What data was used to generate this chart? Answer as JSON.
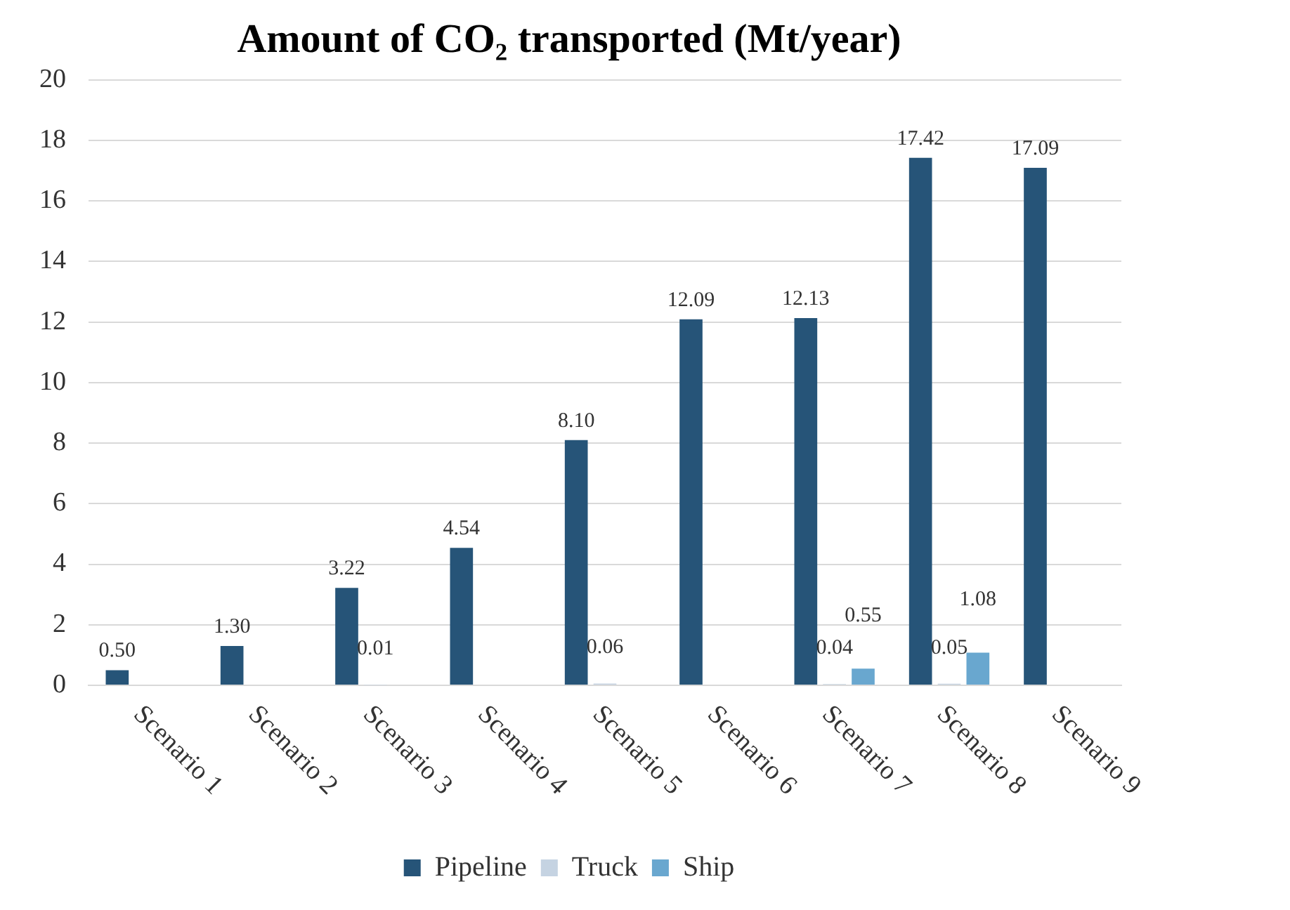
{
  "chart_data": {
    "type": "bar",
    "title": "Amount of CO₂ transported (Mt/year)",
    "categories": [
      "Scenario 1",
      "Scenario 2",
      "Scenario 3",
      "Scenario 4",
      "Scenario 5",
      "Scenario 6",
      "Scenario 7",
      "Scenario 8",
      "Scenario 9"
    ],
    "series": [
      {
        "name": "Pipeline",
        "color": "#265478",
        "values": [
          0.5,
          1.3,
          3.22,
          4.54,
          8.1,
          12.09,
          12.13,
          17.42,
          17.09
        ],
        "value_labels": [
          "0.50",
          "1.30",
          "3.22",
          "4.54",
          "8.10",
          "12.09",
          "12.13",
          "17.42",
          "17.09"
        ]
      },
      {
        "name": "Truck",
        "color": "#c5d3e2",
        "values": [
          null,
          null,
          0.01,
          null,
          0.06,
          null,
          0.04,
          0.05,
          null
        ],
        "value_labels": [
          null,
          null,
          "0.01",
          null,
          "0.06",
          null,
          "0.04",
          "0.05",
          null
        ]
      },
      {
        "name": "Ship",
        "color": "#69a7cf",
        "values": [
          null,
          null,
          null,
          null,
          null,
          null,
          0.55,
          1.08,
          null
        ],
        "value_labels": [
          null,
          null,
          null,
          null,
          null,
          null,
          "0.55",
          "1.08",
          null
        ]
      }
    ],
    "ylim": [
      0,
      20
    ],
    "yticks": [
      0,
      2,
      4,
      6,
      8,
      10,
      12,
      14,
      16,
      18,
      20
    ],
    "grid": "y",
    "legend": "bottom"
  }
}
